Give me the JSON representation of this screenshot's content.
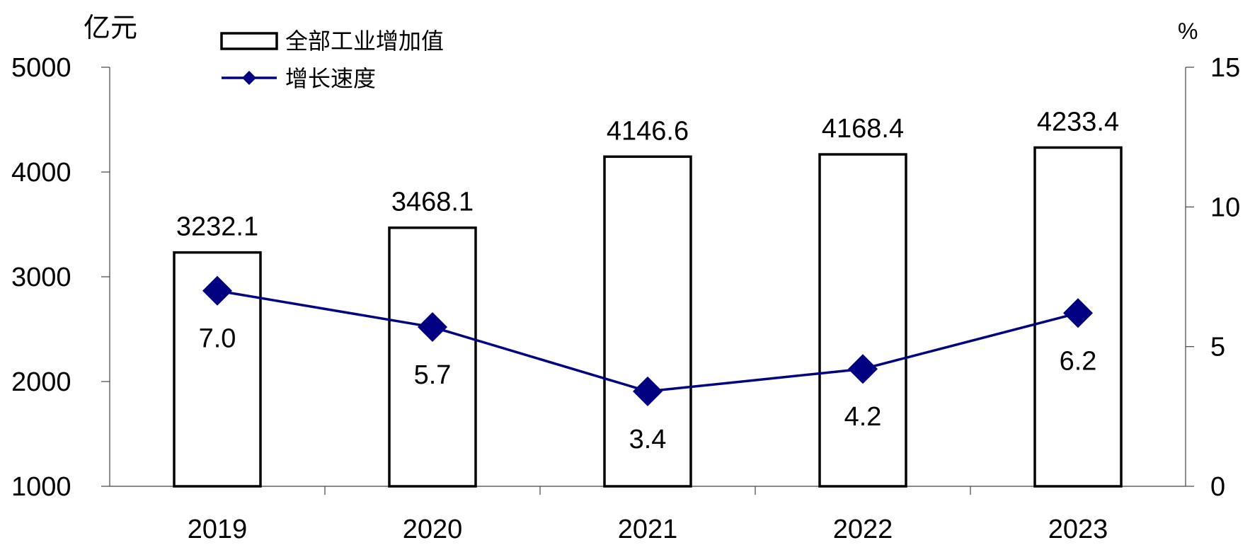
{
  "chart_data": {
    "type": "bar",
    "categories": [
      "2019",
      "2020",
      "2021",
      "2022",
      "2023"
    ],
    "series": [
      {
        "name": "全部工业增加值",
        "type": "bar",
        "axis": "left",
        "values": [
          3232.1,
          3468.1,
          4146.6,
          4168.4,
          4233.4
        ],
        "labels": [
          "3232.1",
          "3468.1",
          "4146.6",
          "4168.4",
          "4233.4"
        ]
      },
      {
        "name": "增长速度",
        "type": "line",
        "axis": "right",
        "values": [
          7.0,
          5.7,
          3.4,
          4.2,
          6.2
        ],
        "labels": [
          "7.0",
          "5.7",
          "3.4",
          "4.2",
          "6.2"
        ]
      }
    ],
    "y_left": {
      "unit": "亿元",
      "range": [
        1000,
        5000
      ],
      "ticks": [
        "1000",
        "2000",
        "3000",
        "4000",
        "5000"
      ]
    },
    "y_right": {
      "unit": "%",
      "range": [
        0,
        15
      ],
      "ticks": [
        "0",
        "5",
        "10",
        "15"
      ]
    },
    "legend_position": "top-left",
    "grid": false,
    "colors": {
      "bar_fill": "#ffffff",
      "bar_stroke": "#000000",
      "line": "#000080"
    }
  }
}
